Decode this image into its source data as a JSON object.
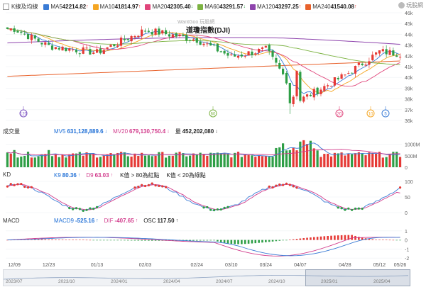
{
  "header": {
    "kline_label": "K線及均線",
    "mas": [
      {
        "label": "MA5",
        "value": "42214.82",
        "dir": "↑",
        "color": "#3a7bd5"
      },
      {
        "label": "MA10",
        "value": "41814.97",
        "dir": "↑",
        "color": "#f5a623"
      },
      {
        "label": "MA20",
        "value": "42305.40",
        "dir": "↓",
        "color": "#e0457b"
      },
      {
        "label": "MA60",
        "value": "43291.57",
        "dir": "↓",
        "color": "#7cb342"
      },
      {
        "label": "MA120",
        "value": "43297.25",
        "dir": "↑",
        "color": "#8e44ad"
      },
      {
        "label": "MA240",
        "value": "41540.08",
        "dir": "↑",
        "color": "#e8622c"
      }
    ],
    "watermark": "WantGoo 玩股網",
    "title": "道瓊指數(DJI)",
    "logo_text": "玩股網"
  },
  "price_axis": [
    "46k",
    "45k",
    "44k",
    "43k",
    "42k",
    "41k",
    "40k",
    "39k",
    "38k",
    "37k",
    "36k"
  ],
  "markers": [
    {
      "label": "120",
      "color": "#7e57c2"
    },
    {
      "label": "60",
      "color": "#7cb342"
    },
    {
      "label": "20",
      "color": "#e0457b"
    },
    {
      "label": "10",
      "color": "#f5a623"
    },
    {
      "label": "5",
      "color": "#3a7bd5"
    }
  ],
  "volume": {
    "title": "成交量",
    "mv5_label": "MV5",
    "mv5_value": "631,128,889.6",
    "mv5_dir": "↓",
    "mv20_label": "MV20",
    "mv20_value": "679,130,750.4",
    "mv20_dir": "↓",
    "vol_label": "量",
    "vol_value": "452,202,080",
    "vol_dir": "↓",
    "axis": [
      "1000M",
      "500M",
      "0"
    ]
  },
  "kd": {
    "title": "KD",
    "k_label": "K9",
    "k_value": "80.36",
    "k_dir": "↑",
    "d_label": "D9",
    "d_value": "63.03",
    "d_dir": "↑",
    "note1": "K值 > 80為紅點",
    "note2": "K值 < 20為綠點",
    "axis": [
      "100",
      "50",
      "0"
    ]
  },
  "macd": {
    "title": "MACD",
    "macd_label": "MACD9",
    "macd_value": "-525.16",
    "macd_dir": "↑",
    "dif_label": "DIF",
    "dif_value": "-407.65",
    "dif_dir": "↑",
    "osc_label": "OSC",
    "osc_value": "117.50",
    "osc_dir": "↑",
    "axis": [
      "1",
      "0",
      "-1",
      "-2"
    ]
  },
  "x_labels": [
    "12/09",
    "12/23",
    "01/13",
    "02/03",
    "02/24",
    "03/10",
    "03/24",
    "04/07",
    "04/28",
    "05/12",
    "05/26"
  ],
  "nav_labels": [
    "2023/07",
    "2023/10",
    "2024/01",
    "2024/04",
    "2024/07",
    "2024/10",
    "2025/01",
    "2025/04"
  ],
  "chart_data": {
    "type": "candlestick",
    "title": "道瓊指數(DJI)",
    "period": "daily, Dec 2024 - late May 2025",
    "ylim": [
      36000,
      46000
    ],
    "close_approx": [
      {
        "date": "12/09",
        "value": 44500
      },
      {
        "date": "12/23",
        "value": 42900
      },
      {
        "date": "01/13",
        "value": 42300
      },
      {
        "date": "02/03",
        "value": 44400
      },
      {
        "date": "02/24",
        "value": 43500
      },
      {
        "date": "03/10",
        "value": 41900
      },
      {
        "date": "03/24",
        "value": 42600
      },
      {
        "date": "04/07",
        "value": 37900
      },
      {
        "date": "04/28",
        "value": 40200
      },
      {
        "date": "05/12",
        "value": 42400
      },
      {
        "date": "05/26",
        "value": 42200
      }
    ],
    "series": [
      {
        "name": "MA5",
        "last": 42214.82
      },
      {
        "name": "MA10",
        "last": 41814.97
      },
      {
        "name": "MA20",
        "last": 42305.4
      },
      {
        "name": "MA60",
        "last": 43291.57
      },
      {
        "name": "MA120",
        "last": 43297.25
      },
      {
        "name": "MA240",
        "last": 41540.08
      }
    ],
    "volume_last": 452202080,
    "kd_last": {
      "K": 80.36,
      "D": 63.03
    },
    "macd_last": {
      "MACD9": -525.16,
      "DIF": -407.65,
      "OSC": 117.5
    }
  }
}
